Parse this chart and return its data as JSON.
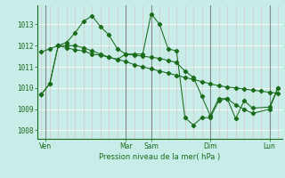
{
  "xlabel": "Pression niveau de la mer( hPa )",
  "bg_color": "#c8ece8",
  "grid_h_color": "#d8f0ee",
  "grid_v_minor_color": "#d8c8c8",
  "grid_v_major_color": "#888888",
  "line_color": "#1a6b1a",
  "ylim": [
    1007.6,
    1013.9
  ],
  "xlim": [
    -0.5,
    28.5
  ],
  "xtick_positions": [
    0.5,
    10,
    13,
    20,
    27
  ],
  "xtick_labels": [
    "Ven",
    "Mar",
    "Sam",
    "Dim",
    "Lun"
  ],
  "ytick_positions": [
    1008,
    1009,
    1010,
    1011,
    1012,
    1013
  ],
  "day_lines": [
    0.5,
    10,
    13,
    20,
    27
  ],
  "line1_x": [
    0,
    1,
    2,
    3,
    4,
    5,
    6,
    7,
    8,
    9,
    10,
    11,
    12,
    13,
    14,
    15,
    16,
    17,
    18,
    19,
    20,
    21,
    22,
    23,
    24,
    25,
    26,
    27,
    28
  ],
  "line1_y": [
    1011.7,
    1011.85,
    1012.0,
    1011.9,
    1011.8,
    1011.75,
    1011.6,
    1011.55,
    1011.45,
    1011.35,
    1011.25,
    1011.1,
    1011.0,
    1010.9,
    1010.8,
    1010.7,
    1010.6,
    1010.5,
    1010.4,
    1010.3,
    1010.2,
    1010.1,
    1010.05,
    1010.0,
    1009.95,
    1009.9,
    1009.85,
    1009.8,
    1009.75
  ],
  "line2_x": [
    0,
    1,
    2,
    3,
    4,
    5,
    6,
    7,
    8,
    9,
    10,
    11,
    12,
    13,
    14,
    15,
    16,
    17,
    18,
    19,
    20,
    21,
    22,
    23,
    24,
    25,
    27,
    28
  ],
  "line2_y": [
    1009.7,
    1010.2,
    1012.0,
    1012.15,
    1012.6,
    1013.15,
    1013.4,
    1012.9,
    1012.5,
    1011.85,
    1011.6,
    1011.6,
    1011.6,
    1013.5,
    1013.0,
    1011.85,
    1011.75,
    1008.6,
    1008.25,
    1008.6,
    1008.6,
    1009.4,
    1009.5,
    1008.55,
    1009.4,
    1009.05,
    1009.1,
    1010.0
  ],
  "line3_x": [
    0,
    1,
    2,
    3,
    4,
    5,
    6,
    7,
    8,
    9,
    10,
    11,
    12,
    13,
    14,
    15,
    16,
    17,
    18,
    19,
    20,
    21,
    22,
    23,
    24,
    25,
    27,
    28
  ],
  "line3_y": [
    1009.7,
    1010.2,
    1012.0,
    1012.0,
    1012.0,
    1011.9,
    1011.75,
    1011.6,
    1011.45,
    1011.35,
    1011.6,
    1011.55,
    1011.5,
    1011.45,
    1011.4,
    1011.3,
    1011.2,
    1010.8,
    1010.5,
    1009.6,
    1008.7,
    1009.5,
    1009.5,
    1009.2,
    1009.0,
    1008.8,
    1009.0,
    1010.0
  ]
}
